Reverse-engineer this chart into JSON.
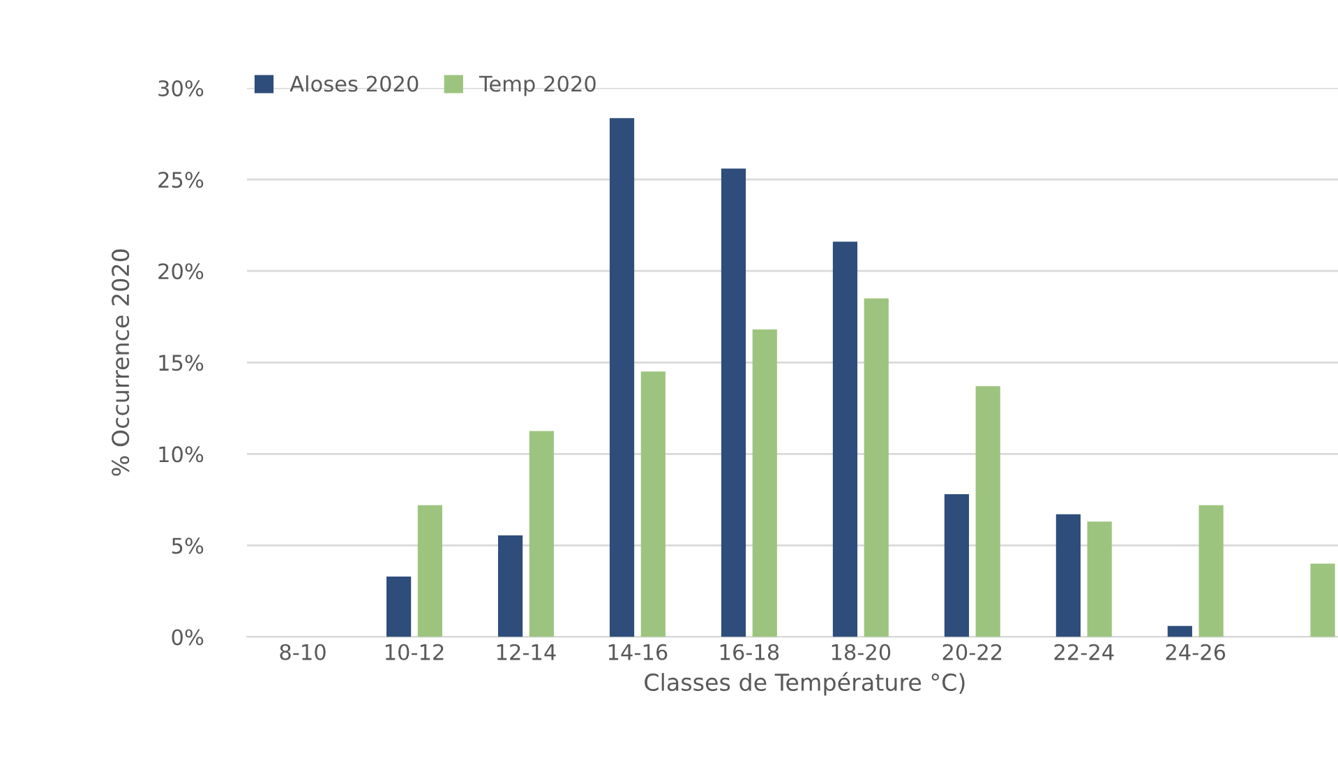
{
  "chart_data": {
    "type": "bar",
    "xlabel": "Classes de Température °C)",
    "ylabel": "% Occurrence 2020",
    "categories": [
      "8-10",
      "10-12",
      "12-14",
      "14-16",
      "16-18",
      "18-20",
      "20-22",
      "22-24",
      "24-26",
      null
    ],
    "series": [
      {
        "name": "Aloses 2020",
        "color": "#2e4d7b",
        "values": [
          0,
          3.3,
          5.55,
          28.35,
          25.6,
          21.6,
          7.8,
          6.7,
          0.6,
          0
        ]
      },
      {
        "name": "Temp 2020",
        "color": "#9dc47f",
        "values": [
          0,
          7.2,
          11.25,
          14.5,
          16.8,
          18.5,
          13.7,
          6.3,
          7.2,
          4.0
        ]
      }
    ],
    "ylim": [
      0,
      30
    ],
    "yticks": [
      {
        "value": 0,
        "label": "0%"
      },
      {
        "value": 5,
        "label": "5%"
      },
      {
        "value": 10,
        "label": "10%"
      },
      {
        "value": 15,
        "label": "15%"
      },
      {
        "value": 20,
        "label": "20%"
      },
      {
        "value": 25,
        "label": "25%"
      },
      {
        "value": 30,
        "label": "30%"
      }
    ],
    "grid": "y",
    "legend": "top left"
  }
}
